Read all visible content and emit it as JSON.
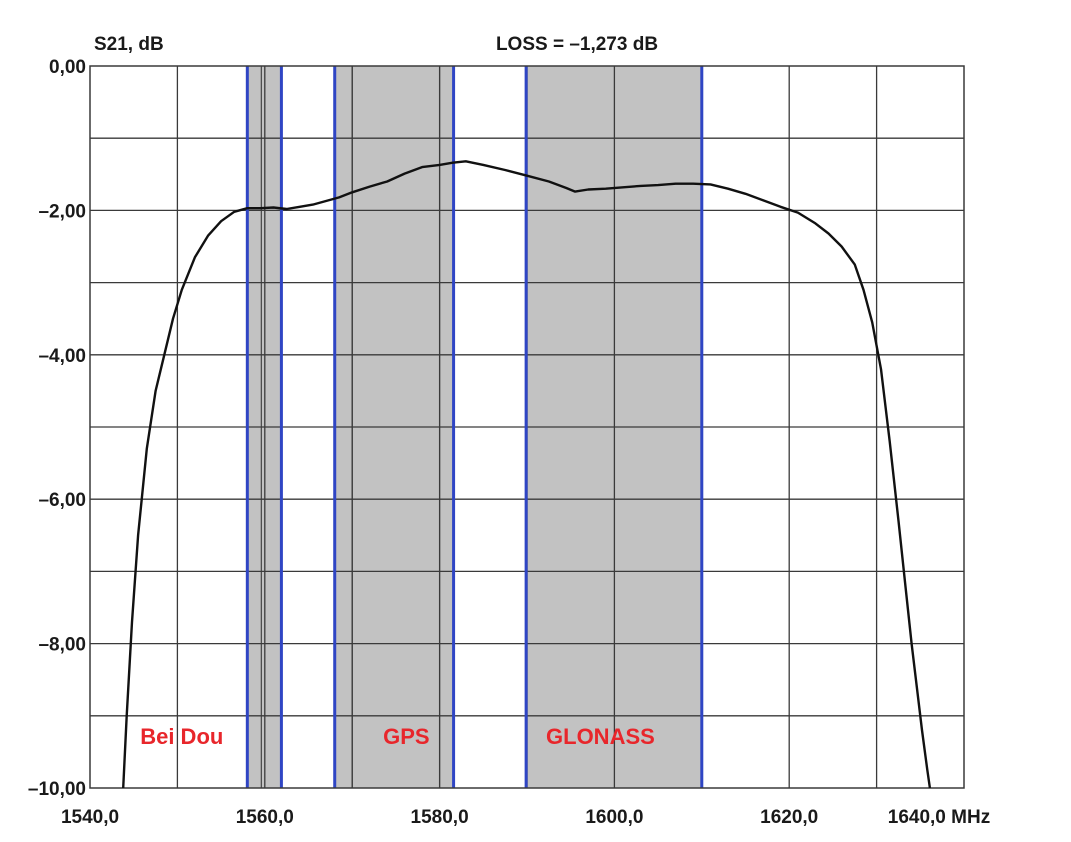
{
  "chart_data": {
    "type": "line",
    "ylabel": "S21, dB",
    "title": "LOSS = –1,273 dB",
    "xunit": "MHz",
    "xlim": [
      1540,
      1640
    ],
    "ylim": [
      -10,
      0
    ],
    "x_ticks": [
      1540,
      1560,
      1580,
      1600,
      1620,
      1640
    ],
    "x_tick_labels": [
      "1540,0",
      "1560,0",
      "1580,0",
      "1600,0",
      "1620,0",
      "1640,0 MHz"
    ],
    "y_ticks": [
      0,
      -2,
      -4,
      -6,
      -8,
      -10
    ],
    "y_tick_labels": [
      "0,00",
      "–2,00",
      "–4,00",
      "–6,00",
      "–8,00",
      "–10,00"
    ],
    "grid": true,
    "bands": [
      {
        "label": "Bei Dou",
        "from": 1558.0,
        "to": 1561.9
      },
      {
        "label": "GPS",
        "from": 1568.0,
        "to": 1581.6
      },
      {
        "label": "GLONASS",
        "from": 1589.9,
        "to": 1610.0
      }
    ],
    "extra_gridlines_in_bands": [
      1559.6,
      1561.9,
      1570.0,
      1580.0
    ],
    "series": [
      {
        "x": [
          1543.8,
          1544.2,
          1544.8,
          1545.5,
          1546.5,
          1547.5,
          1548.5,
          1549.5,
          1550.5,
          1552.0,
          1553.5,
          1555.0,
          1556.5,
          1558.0,
          1559.5,
          1561.0,
          1562.5,
          1564.0,
          1565.5,
          1567.0,
          1568.5,
          1570.0,
          1572.0,
          1574.0,
          1576.0,
          1578.0,
          1580.0,
          1581.5,
          1583.0,
          1585.0,
          1587.5,
          1590.0,
          1592.5,
          1594.5,
          1595.5,
          1597.0,
          1599.0,
          1601.0,
          1603.0,
          1605.0,
          1607.0,
          1609.0,
          1611.0,
          1613.0,
          1615.0,
          1617.0,
          1619.0,
          1621.0,
          1623.0,
          1624.5,
          1626.0,
          1627.5,
          1628.5,
          1629.5,
          1630.5,
          1631.5,
          1632.5,
          1633.3,
          1634.0,
          1634.6,
          1635.2,
          1635.8,
          1636.1
        ],
        "y": [
          -10.0,
          -9.0,
          -7.7,
          -6.5,
          -5.3,
          -4.5,
          -4.0,
          -3.5,
          -3.1,
          -2.65,
          -2.35,
          -2.15,
          -2.02,
          -1.97,
          -1.97,
          -1.96,
          -1.98,
          -1.95,
          -1.92,
          -1.87,
          -1.82,
          -1.75,
          -1.67,
          -1.6,
          -1.49,
          -1.4,
          -1.37,
          -1.34,
          -1.32,
          -1.37,
          -1.44,
          -1.52,
          -1.6,
          -1.69,
          -1.74,
          -1.71,
          -1.7,
          -1.68,
          -1.66,
          -1.65,
          -1.63,
          -1.63,
          -1.64,
          -1.7,
          -1.77,
          -1.86,
          -1.95,
          -2.03,
          -2.18,
          -2.32,
          -2.5,
          -2.75,
          -3.1,
          -3.55,
          -4.2,
          -5.2,
          -6.3,
          -7.2,
          -8.0,
          -8.6,
          -9.2,
          -9.75,
          -10.0
        ]
      }
    ]
  },
  "colors": {
    "band_fill": "#c2c2c2",
    "band_edge": "#2f45c4",
    "band_label": "#e8262b",
    "grid": "#3a3a3a",
    "curve": "#111111"
  }
}
